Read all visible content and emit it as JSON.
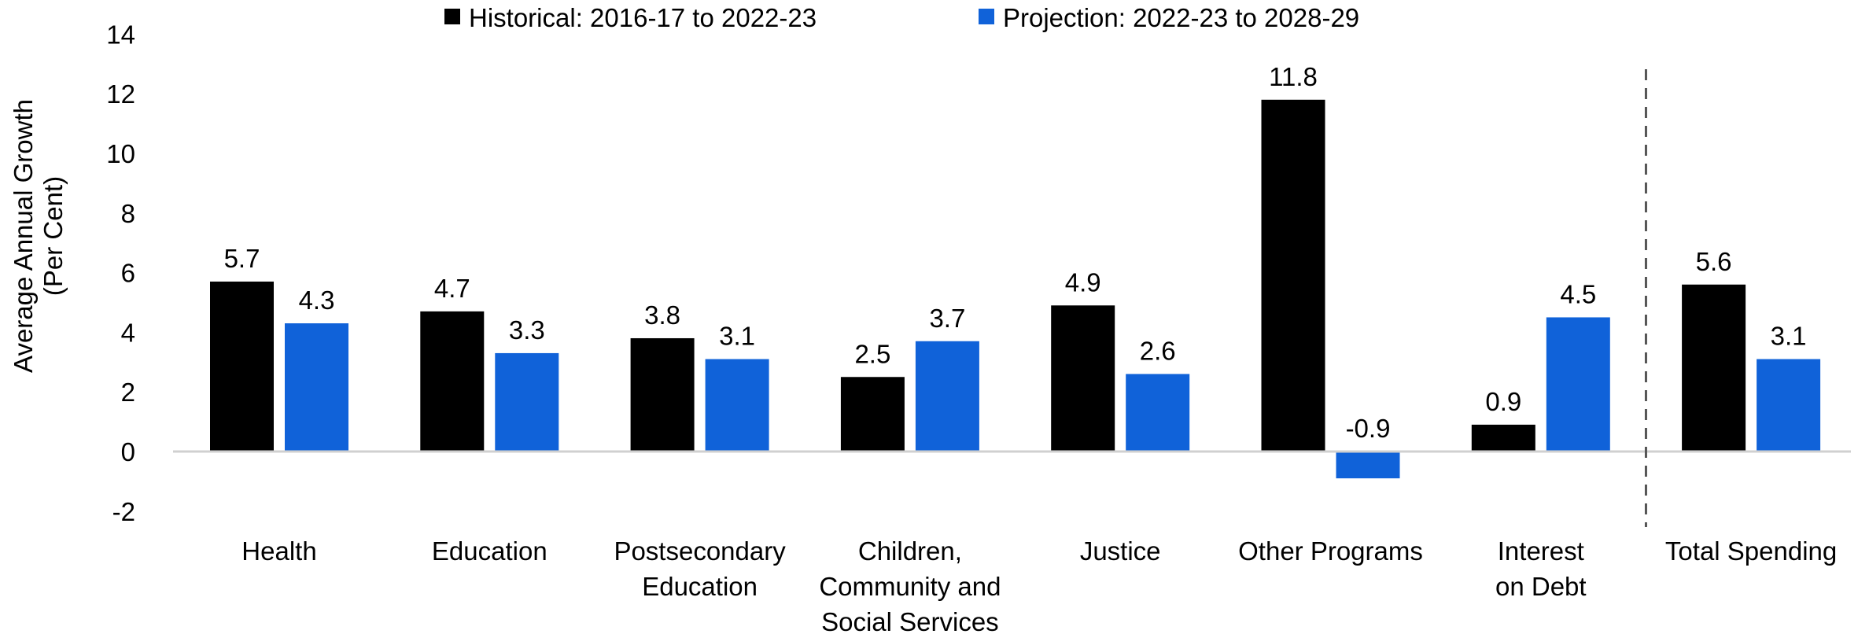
{
  "chart_data": {
    "type": "bar",
    "title": "",
    "ylabel": [
      "Average Annual Growth",
      "(Per Cent)"
    ],
    "xlabel": "",
    "ylim": [
      -2,
      14
    ],
    "yticks": [
      -2,
      0,
      2,
      4,
      6,
      8,
      10,
      12,
      14
    ],
    "grid": false,
    "legend_position": "top",
    "categories": [
      [
        "Health"
      ],
      [
        "Education"
      ],
      [
        "Postsecondary",
        "Education"
      ],
      [
        "Children,",
        "Community and",
        "Social Services"
      ],
      [
        "Justice"
      ],
      [
        "Other Programs"
      ],
      [
        "Interest",
        "on Debt"
      ],
      [
        "Total Spending"
      ]
    ],
    "series": [
      {
        "name": "Historical: 2016-17 to 2022-23",
        "color": "#000000",
        "values": [
          5.7,
          4.7,
          3.8,
          2.5,
          4.9,
          11.8,
          0.9,
          5.6
        ]
      },
      {
        "name": "Projection: 2022-23 to 2028-29",
        "color": "#1062D9",
        "values": [
          4.3,
          3.3,
          3.1,
          3.7,
          2.6,
          -0.9,
          4.5,
          3.1
        ]
      }
    ],
    "negative_label_color": "#FF0000",
    "separator_before_category": 7
  }
}
